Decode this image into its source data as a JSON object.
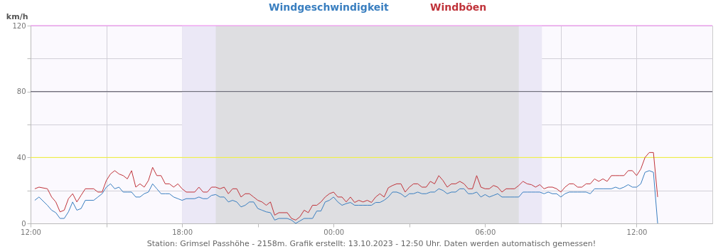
{
  "chart_data": {
    "type": "line",
    "ylabel": "km/h",
    "legend": "top",
    "grid": true,
    "line_style": "solid",
    "xlim": [
      "2023-10-12T12:00",
      "2023-10-13T15:00"
    ],
    "xticks": [
      {
        "value": "2023-10-12T12:00",
        "label": "12:00"
      },
      {
        "value": "2023-10-12T15:00",
        "label": null
      },
      {
        "value": "2023-10-12T18:00",
        "label": "18:00"
      },
      {
        "value": "2023-10-12T21:00",
        "label": null
      },
      {
        "value": "2023-10-13T00:00",
        "label": "00:00"
      },
      {
        "value": "2023-10-13T03:00",
        "label": null
      },
      {
        "value": "2023-10-13T06:00",
        "label": "06:00"
      },
      {
        "value": "2023-10-13T09:00",
        "label": null
      },
      {
        "value": "2023-10-13T12:00",
        "label": "12:00"
      }
    ],
    "ylim": [
      0,
      120
    ],
    "yticks": [
      0,
      {
        "value": 20,
        "label": null
      },
      40,
      {
        "value": 60,
        "label": null
      },
      80,
      {
        "value": 100,
        "label": null
      },
      120
    ],
    "x": [
      "2023-10-12T12:10",
      "2023-10-12T12:20",
      "2023-10-12T12:40",
      "2023-10-12T12:50",
      "2023-10-12T13:00",
      "2023-10-12T13:10",
      "2023-10-12T13:20",
      "2023-10-12T13:30",
      "2023-10-12T13:40",
      "2023-10-12T13:50",
      "2023-10-12T14:00",
      "2023-10-12T14:10",
      "2023-10-12T14:30",
      "2023-10-12T14:40",
      "2023-10-12T14:50",
      "2023-10-12T15:00",
      "2023-10-12T15:10",
      "2023-10-12T15:20",
      "2023-10-12T15:30",
      "2023-10-12T15:40",
      "2023-10-12T15:50",
      "2023-10-12T16:00",
      "2023-10-12T16:10",
      "2023-10-12T16:20",
      "2023-10-12T16:30",
      "2023-10-12T16:40",
      "2023-10-12T16:50",
      "2023-10-12T17:00",
      "2023-10-12T17:10",
      "2023-10-12T17:20",
      "2023-10-12T17:30",
      "2023-10-12T17:40",
      "2023-10-12T17:50",
      "2023-10-12T18:00",
      "2023-10-12T18:10",
      "2023-10-12T18:30",
      "2023-10-12T18:40",
      "2023-10-12T18:50",
      "2023-10-12T19:00",
      "2023-10-12T19:10",
      "2023-10-12T19:20",
      "2023-10-12T19:30",
      "2023-10-12T19:40",
      "2023-10-12T19:50",
      "2023-10-12T20:00",
      "2023-10-12T20:10",
      "2023-10-12T20:20",
      "2023-10-12T20:30",
      "2023-10-12T20:40",
      "2023-10-12T20:50",
      "2023-10-12T21:00",
      "2023-10-12T21:10",
      "2023-10-12T21:20",
      "2023-10-12T21:30",
      "2023-10-12T21:40",
      "2023-10-12T21:50",
      "2023-10-12T22:10",
      "2023-10-12T22:20",
      "2023-10-12T22:30",
      "2023-10-12T22:40",
      "2023-10-12T22:50",
      "2023-10-12T23:00",
      "2023-10-12T23:10",
      "2023-10-12T23:20",
      "2023-10-12T23:30",
      "2023-10-12T23:40",
      "2023-10-12T23:50",
      "2023-10-13T00:00",
      "2023-10-13T00:10",
      "2023-10-13T00:20",
      "2023-10-13T00:30",
      "2023-10-13T00:40",
      "2023-10-13T00:50",
      "2023-10-13T01:00",
      "2023-10-13T01:10",
      "2023-10-13T01:20",
      "2023-10-13T01:30",
      "2023-10-13T01:40",
      "2023-10-13T01:50",
      "2023-10-13T02:00",
      "2023-10-13T02:10",
      "2023-10-13T02:20",
      "2023-10-13T02:30",
      "2023-10-13T02:40",
      "2023-10-13T02:50",
      "2023-10-13T03:00",
      "2023-10-13T03:10",
      "2023-10-13T03:20",
      "2023-10-13T03:30",
      "2023-10-13T03:40",
      "2023-10-13T03:50",
      "2023-10-13T04:00",
      "2023-10-13T04:10",
      "2023-10-13T04:20",
      "2023-10-13T04:30",
      "2023-10-13T04:40",
      "2023-10-13T04:50",
      "2023-10-13T05:00",
      "2023-10-13T05:10",
      "2023-10-13T05:20",
      "2023-10-13T05:30",
      "2023-10-13T05:40",
      "2023-10-13T05:50",
      "2023-10-13T06:00",
      "2023-10-13T06:10",
      "2023-10-13T06:20",
      "2023-10-13T06:30",
      "2023-10-13T06:40",
      "2023-10-13T06:50",
      "2023-10-13T07:00",
      "2023-10-13T07:10",
      "2023-10-13T07:20",
      "2023-10-13T07:30",
      "2023-10-13T07:40",
      "2023-10-13T07:50",
      "2023-10-13T08:00",
      "2023-10-13T08:10",
      "2023-10-13T08:20",
      "2023-10-13T08:30",
      "2023-10-13T08:40",
      "2023-10-13T08:50",
      "2023-10-13T09:00",
      "2023-10-13T09:10",
      "2023-10-13T09:20",
      "2023-10-13T09:30",
      "2023-10-13T09:40",
      "2023-10-13T09:50",
      "2023-10-13T10:00",
      "2023-10-13T10:10",
      "2023-10-13T10:20",
      "2023-10-13T10:30",
      "2023-10-13T10:40",
      "2023-10-13T10:50",
      "2023-10-13T11:00",
      "2023-10-13T11:10",
      "2023-10-13T11:20",
      "2023-10-13T11:30",
      "2023-10-13T11:40",
      "2023-10-13T11:50",
      "2023-10-13T12:00",
      "2023-10-13T12:10",
      "2023-10-13T12:20",
      "2023-10-13T12:30",
      "2023-10-13T12:40",
      "2023-10-13T12:50"
    ],
    "series": [
      {
        "name": "Windgeschwindigkeit",
        "color": "#3a7fc0",
        "values": [
          14,
          16,
          11,
          8,
          6.5,
          3,
          3,
          7,
          13,
          8,
          9,
          14,
          14,
          16,
          18,
          22,
          24,
          21,
          22,
          19,
          19,
          19,
          16,
          16,
          18,
          19,
          24,
          21,
          18,
          18,
          18,
          16,
          15,
          14,
          15,
          15,
          16,
          15,
          15,
          17,
          17.5,
          16,
          16,
          13,
          14,
          13,
          10,
          11,
          13,
          13,
          9,
          8,
          7,
          6.5,
          2,
          3,
          3,
          2,
          0,
          1.5,
          3,
          3,
          3,
          7.5,
          7.5,
          13,
          14,
          16,
          13,
          11,
          12,
          12.7,
          11,
          11,
          11,
          11,
          11,
          12.7,
          12.7,
          14,
          16,
          19,
          19,
          18,
          16,
          18,
          18,
          19,
          18,
          18,
          19,
          19,
          21,
          20,
          18,
          19,
          19,
          21,
          21,
          18,
          18,
          19,
          16,
          17.5,
          16,
          17,
          18,
          16,
          16,
          16,
          16,
          16,
          19,
          19,
          19,
          19,
          19,
          18,
          19,
          18,
          18,
          16,
          18,
          19,
          19,
          19,
          19,
          19,
          18,
          21,
          21,
          21,
          21,
          21,
          22,
          21,
          22,
          23.5,
          22,
          22,
          24,
          31,
          32,
          31,
          0
        ]
      },
      {
        "name": "Windböen",
        "color": "#c0333a",
        "values": [
          21,
          22,
          21,
          16,
          13,
          7,
          8,
          15,
          18,
          13,
          17,
          21,
          21,
          19,
          19,
          26,
          30,
          32,
          30,
          29,
          27,
          32,
          22,
          24,
          22,
          26,
          34,
          29,
          29,
          24,
          24,
          22,
          24,
          21,
          19,
          19,
          22,
          19,
          19,
          22,
          22,
          21,
          22,
          18,
          21,
          21,
          16,
          18,
          18,
          16,
          14,
          13,
          11,
          13,
          5,
          6.5,
          6.5,
          3,
          2,
          4,
          8,
          6.5,
          11,
          11,
          13,
          16,
          18,
          19,
          16,
          16,
          13,
          16,
          12.7,
          14,
          13,
          14,
          12.7,
          16,
          18,
          16,
          21.6,
          23,
          24,
          24,
          19,
          22,
          24,
          24,
          22,
          22,
          25.5,
          24,
          29,
          26,
          22,
          24,
          24,
          25.5,
          24,
          21,
          21,
          29,
          22,
          21,
          21,
          23,
          22,
          19,
          21,
          21,
          21,
          23,
          25.5,
          24,
          23.5,
          22,
          23.5,
          21,
          22,
          22,
          21,
          19,
          22,
          24,
          24,
          22,
          22,
          24,
          24,
          27,
          25.5,
          27,
          25.5,
          29,
          29,
          29,
          29,
          32,
          32,
          29,
          33,
          40,
          43,
          43,
          16
        ]
      }
    ],
    "ref_lines": [
      {
        "axis": "y",
        "value": 40,
        "color": "#f2f230"
      },
      {
        "axis": "y",
        "value": 80,
        "color": "#5a5a66"
      },
      {
        "axis": "y",
        "value": 120,
        "color": "#ee82ee"
      }
    ],
    "bands": [
      {
        "axis": "x",
        "from": "2023-10-12T18:00",
        "to": "2023-10-13T08:15",
        "color": "#ebe8f6"
      },
      {
        "axis": "x",
        "from": "2023-10-12T19:20",
        "to": "2023-10-13T07:20",
        "color": "#dedee1"
      }
    ],
    "annotations": [
      "Station: Grimsel Passhöhe - 2158m. Grafik erstellt: 13.10.2023 - 12:50 Uhr. Daten werden automatisch gemessen!"
    ]
  }
}
